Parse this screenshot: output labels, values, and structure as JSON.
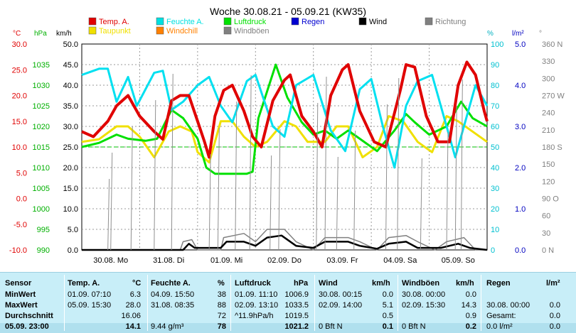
{
  "title": "Woche 30.08.21 - 05.09.21 (KW35)",
  "legend": [
    {
      "name": "Temp. A.",
      "color": "#e00000"
    },
    {
      "name": "Feuchte A.",
      "color": "#00e0e0"
    },
    {
      "name": "Luftdruck",
      "color": "#00e000"
    },
    {
      "name": "Regen",
      "color": "#0000d0"
    },
    {
      "name": "Wind",
      "color": "#000000"
    },
    {
      "name": "Richtung",
      "color": "#808080"
    },
    {
      "name": "Taupunkt",
      "color": "#f0e000"
    },
    {
      "name": "Windchill",
      "color": "#ff8000"
    },
    {
      "name": "Windböen",
      "color": "#808080"
    }
  ],
  "axes": {
    "temp_unit": "°C",
    "press_unit": "hPa",
    "speed_unit": "km/h",
    "hum_unit": "%",
    "rain_unit": "l/m²",
    "dir_unit": "°",
    "temp_ticks": [
      "30.0",
      "25.0",
      "20.0",
      "15.0",
      "10.0",
      "5.0",
      "0.0",
      "-5.0",
      "-10.0"
    ],
    "press_ticks": [
      "1035",
      "1030",
      "1025",
      "1020",
      "1015",
      "1010",
      "1005",
      "1000",
      "995",
      "990"
    ],
    "speed_ticks": [
      "50.0",
      "45.0",
      "40.0",
      "35.0",
      "30.0",
      "25.0",
      "20.0",
      "15.0",
      "10.0",
      "5.0",
      "0.0"
    ],
    "hum_ticks": [
      "100",
      "90",
      "80",
      "70",
      "60",
      "50",
      "40",
      "30",
      "20",
      "10",
      "0"
    ],
    "rain_ticks": [
      "5.0",
      "4.0",
      "3.0",
      "2.0",
      "1.0",
      "0.0"
    ],
    "dir_ticks": [
      "360 N",
      "330",
      "300",
      "270 W",
      "240",
      "210",
      "180 S",
      "150",
      "120",
      "90 O",
      "60",
      "30",
      "0 N"
    ],
    "day_labels": [
      "30.08. Mo",
      "31.08. Di",
      "01.09. Mi",
      "02.09. Do",
      "03.09. Fr",
      "04.09. Sa",
      "05.09. So"
    ]
  },
  "chart_data": {
    "type": "line",
    "title": "Woche 30.08.21 - 05.09.21 (KW35)",
    "x_unit": "days since 30.08. 00:00",
    "xlim": [
      0,
      7
    ],
    "series": [
      {
        "name": "Temp. A.",
        "axis": "°C",
        "values": [
          [
            0,
            13
          ],
          [
            0.2,
            12
          ],
          [
            0.45,
            15
          ],
          [
            0.6,
            18
          ],
          [
            0.8,
            20
          ],
          [
            1.0,
            16
          ],
          [
            1.25,
            13
          ],
          [
            1.4,
            11.5
          ],
          [
            1.55,
            19
          ],
          [
            1.7,
            20
          ],
          [
            1.85,
            20
          ],
          [
            2.0,
            15
          ],
          [
            2.12,
            11
          ],
          [
            2.2,
            8
          ],
          [
            2.3,
            16
          ],
          [
            2.45,
            21
          ],
          [
            2.6,
            22
          ],
          [
            2.8,
            17
          ],
          [
            2.95,
            12
          ],
          [
            3.1,
            10
          ],
          [
            3.3,
            19
          ],
          [
            3.5,
            23
          ],
          [
            3.6,
            24
          ],
          [
            3.8,
            16
          ],
          [
            4.0,
            13
          ],
          [
            4.15,
            10
          ],
          [
            4.3,
            20
          ],
          [
            4.5,
            25
          ],
          [
            4.6,
            26
          ],
          [
            4.8,
            17
          ],
          [
            5.05,
            11
          ],
          [
            5.25,
            10
          ],
          [
            5.5,
            21
          ],
          [
            5.6,
            26
          ],
          [
            5.75,
            25.5
          ],
          [
            5.95,
            16
          ],
          [
            6.15,
            11
          ],
          [
            6.35,
            11
          ],
          [
            6.5,
            22
          ],
          [
            6.65,
            26.5
          ],
          [
            6.8,
            24
          ],
          [
            6.95,
            17
          ],
          [
            7.0,
            15
          ]
        ]
      },
      {
        "name": "Feuchte A.",
        "axis": "%",
        "values": [
          [
            0,
            85
          ],
          [
            0.3,
            88
          ],
          [
            0.45,
            88
          ],
          [
            0.6,
            72
          ],
          [
            0.8,
            84
          ],
          [
            0.95,
            70
          ],
          [
            1.25,
            86
          ],
          [
            1.4,
            87
          ],
          [
            1.55,
            68
          ],
          [
            1.75,
            72
          ],
          [
            2.0,
            80
          ],
          [
            2.2,
            84
          ],
          [
            2.4,
            70
          ],
          [
            2.6,
            62
          ],
          [
            2.85,
            82
          ],
          [
            3.0,
            85
          ],
          [
            3.3,
            60
          ],
          [
            3.5,
            55
          ],
          [
            3.7,
            80
          ],
          [
            4.0,
            85
          ],
          [
            4.3,
            58
          ],
          [
            4.55,
            48
          ],
          [
            4.8,
            78
          ],
          [
            5.0,
            83
          ],
          [
            5.2,
            60
          ],
          [
            5.4,
            40
          ],
          [
            5.6,
            70
          ],
          [
            5.8,
            82
          ],
          [
            6.05,
            85
          ],
          [
            6.3,
            60
          ],
          [
            6.45,
            45
          ],
          [
            6.6,
            60
          ],
          [
            6.8,
            80
          ],
          [
            7.0,
            70
          ]
        ]
      },
      {
        "name": "Luftdruck",
        "axis": "hPa",
        "values": [
          [
            0,
            1015
          ],
          [
            0.3,
            1016
          ],
          [
            0.6,
            1018
          ],
          [
            0.8,
            1017
          ],
          [
            1.1,
            1016.5
          ],
          [
            1.3,
            1017
          ],
          [
            1.55,
            1024
          ],
          [
            1.75,
            1022
          ],
          [
            2.0,
            1017
          ],
          [
            2.15,
            1010
          ],
          [
            2.3,
            1008.5
          ],
          [
            2.6,
            1008.5
          ],
          [
            2.85,
            1008.5
          ],
          [
            2.95,
            1009
          ],
          [
            3.05,
            1022
          ],
          [
            3.35,
            1035
          ],
          [
            3.55,
            1027
          ],
          [
            3.8,
            1021
          ],
          [
            4.0,
            1018
          ],
          [
            4.2,
            1019
          ],
          [
            4.4,
            1017
          ],
          [
            4.6,
            1019
          ],
          [
            4.8,
            1017
          ],
          [
            5.1,
            1014
          ],
          [
            5.4,
            1019
          ],
          [
            5.6,
            1023
          ],
          [
            5.75,
            1021
          ],
          [
            6.0,
            1018
          ],
          [
            6.3,
            1020
          ],
          [
            6.55,
            1026
          ],
          [
            6.75,
            1022
          ],
          [
            7.0,
            1020
          ]
        ]
      },
      {
        "name": "Taupunkt",
        "axis": "°C",
        "values": [
          [
            0,
            11
          ],
          [
            0.3,
            11.5
          ],
          [
            0.6,
            14
          ],
          [
            0.8,
            14
          ],
          [
            1.0,
            12
          ],
          [
            1.25,
            8
          ],
          [
            1.5,
            13
          ],
          [
            1.7,
            14
          ],
          [
            1.9,
            13
          ],
          [
            2.0,
            9
          ],
          [
            2.2,
            7
          ],
          [
            2.4,
            15
          ],
          [
            2.6,
            15
          ],
          [
            2.8,
            12
          ],
          [
            3.0,
            10
          ],
          [
            3.2,
            11
          ],
          [
            3.5,
            15
          ],
          [
            3.7,
            14
          ],
          [
            3.9,
            11
          ],
          [
            4.2,
            11
          ],
          [
            4.4,
            14
          ],
          [
            4.6,
            14
          ],
          [
            4.85,
            8
          ],
          [
            5.1,
            10
          ],
          [
            5.3,
            16
          ],
          [
            5.55,
            15
          ],
          [
            5.8,
            11
          ],
          [
            6.05,
            9
          ],
          [
            6.3,
            16
          ],
          [
            6.5,
            15
          ],
          [
            6.75,
            13
          ],
          [
            7.0,
            11
          ]
        ]
      },
      {
        "name": "Windböen",
        "axis": "km/h",
        "values": [
          [
            0,
            0
          ],
          [
            1.7,
            0
          ],
          [
            1.75,
            2
          ],
          [
            1.9,
            2.5
          ],
          [
            2.0,
            0
          ],
          [
            2.4,
            0
          ],
          [
            2.45,
            3
          ],
          [
            2.8,
            4
          ],
          [
            3.0,
            2
          ],
          [
            3.2,
            5
          ],
          [
            3.5,
            5
          ],
          [
            3.7,
            2
          ],
          [
            4.0,
            0
          ],
          [
            4.2,
            3
          ],
          [
            4.6,
            3
          ],
          [
            4.8,
            2
          ],
          [
            5.1,
            0
          ],
          [
            5.3,
            3
          ],
          [
            5.6,
            3.5
          ],
          [
            5.8,
            2
          ],
          [
            6.1,
            0
          ],
          [
            6.3,
            2
          ],
          [
            6.6,
            3
          ],
          [
            6.8,
            0
          ],
          [
            7.0,
            0
          ]
        ]
      },
      {
        "name": "Wind",
        "axis": "km/h",
        "values": [
          [
            0,
            0
          ],
          [
            1.75,
            0
          ],
          [
            1.85,
            1.5
          ],
          [
            1.95,
            0.5
          ],
          [
            2.4,
            0.5
          ],
          [
            2.5,
            2
          ],
          [
            2.8,
            2
          ],
          [
            3.0,
            1
          ],
          [
            3.2,
            3
          ],
          [
            3.45,
            3.5
          ],
          [
            3.7,
            1
          ],
          [
            4.0,
            0.5
          ],
          [
            4.2,
            2
          ],
          [
            4.6,
            2
          ],
          [
            4.8,
            1
          ],
          [
            5.1,
            0.3
          ],
          [
            5.3,
            1.5
          ],
          [
            5.6,
            2
          ],
          [
            5.8,
            0.5
          ],
          [
            6.2,
            0.5
          ],
          [
            6.5,
            1.5
          ],
          [
            6.7,
            0.5
          ],
          [
            7.0,
            0
          ]
        ]
      }
    ]
  },
  "table": {
    "headers": {
      "sensor": "Sensor",
      "temp": "Temp. A.",
      "temp_unit": "°C",
      "hum": "Feuchte A.",
      "hum_unit": "%",
      "press": "Luftdruck",
      "press_unit": "hPa",
      "wind": "Wind",
      "wind_unit": "km/h",
      "gust": "Windböen",
      "gust_unit": "km/h",
      "rain": "Regen",
      "rain_unit": "l/m²"
    },
    "rows": [
      {
        "label": "MinWert",
        "temp_t": "01.09.  07:10",
        "temp_v": "6.3",
        "hum_t": "04.09.  15:50",
        "hum_v": "38",
        "press_t": "01.09.  11:10",
        "press_v": "1006.9",
        "wind_t": "30.08.  00:15",
        "wind_v": "0.0",
        "gust_t": "30.08.  00:00",
        "gust_v": "0.0",
        "rain_t": "",
        "rain_v": ""
      },
      {
        "label": "MaxWert",
        "temp_t": "05.09.  15:30",
        "temp_v": "28.0",
        "hum_t": "31.08.  08:35",
        "hum_v": "88",
        "press_t": "02.09.  13:10",
        "press_v": "1033.5",
        "wind_t": "02.09.  14:00",
        "wind_v": "5.1",
        "gust_t": "02.09.  15:30",
        "gust_v": "14.3",
        "rain_t": "30.08.  00:00",
        "rain_v": "0.0"
      },
      {
        "label": "Durchschnitt",
        "temp_t": "",
        "temp_v": "16.06",
        "hum_t": "",
        "hum_v": "72",
        "press_t": "^11.9hPa/h",
        "press_v": "1019.5",
        "wind_t": "",
        "wind_v": "0.5",
        "gust_t": "",
        "gust_v": "0.9",
        "rain_t": "Gesamt:",
        "rain_v": "0.0"
      },
      {
        "label": "05.09.  23:00",
        "temp_t": "",
        "temp_v": "14.1",
        "hum_t": "9.44 g/m³",
        "hum_v": "78",
        "press_t": "",
        "press_v": "1021.2",
        "wind_t": "0 Bft N",
        "wind_v": "0.1",
        "gust_t": "0 Bft N",
        "gust_v": "0.2",
        "rain_t": "0.0 l/m²",
        "rain_v": "0.0"
      }
    ]
  }
}
